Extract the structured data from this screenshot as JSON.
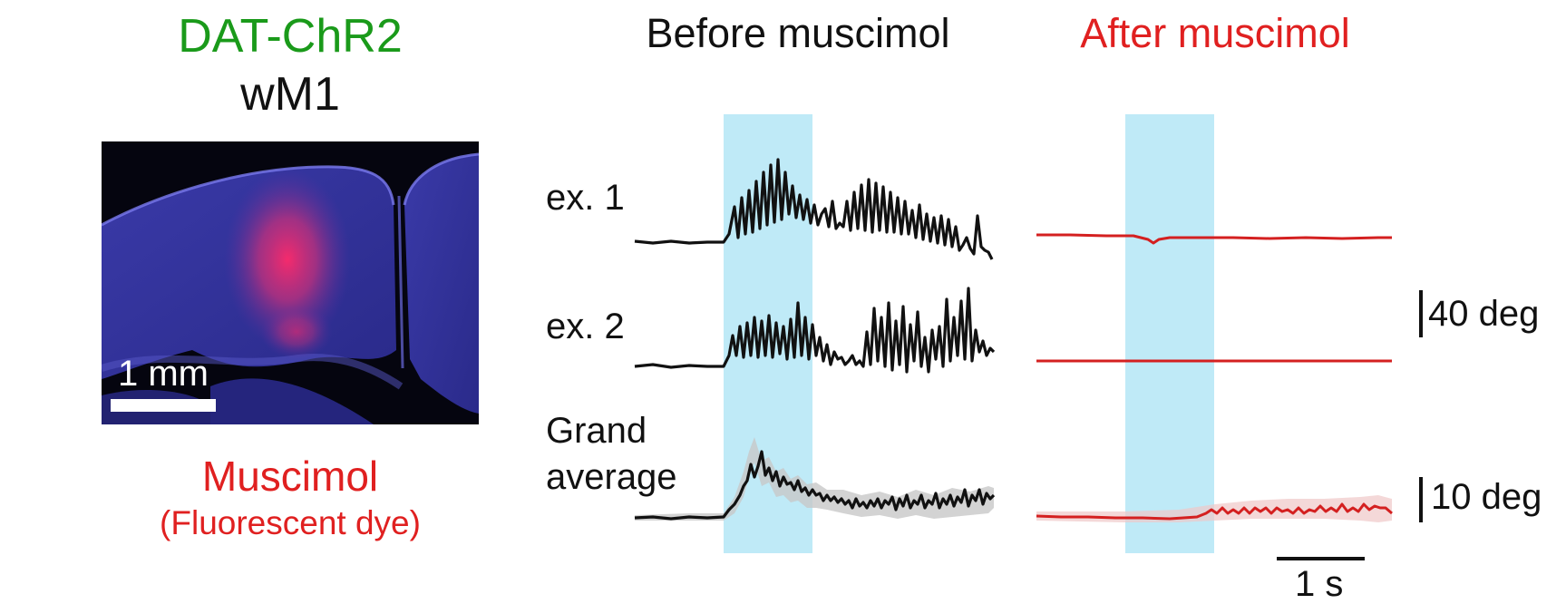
{
  "header": {
    "line1": "DAT-ChR2",
    "line2": "wM1",
    "line1_color": "#1a9a1a"
  },
  "image_panel": {
    "scale_label": "1 mm",
    "caption1": "Muscimol",
    "caption2": "(Fluorescent dye)",
    "caption_color": "#e02020",
    "content": "coronal brain section micrograph, blue stain with red fluorescent dye spot"
  },
  "columns": {
    "before": "Before muscimol",
    "after": "After muscimol",
    "before_color": "#111111",
    "after_color": "#e02020"
  },
  "rows": {
    "ex1": "ex. 1",
    "ex2": "ex. 2",
    "grand1": "Grand",
    "grand2": "average"
  },
  "scale_bars": {
    "amp_top": "40 deg",
    "amp_bottom": "10 deg",
    "time": "1 s"
  },
  "colors": {
    "stim_shading": "#bfeaf7",
    "before_trace": "#111111",
    "after_trace": "#d42020"
  }
}
